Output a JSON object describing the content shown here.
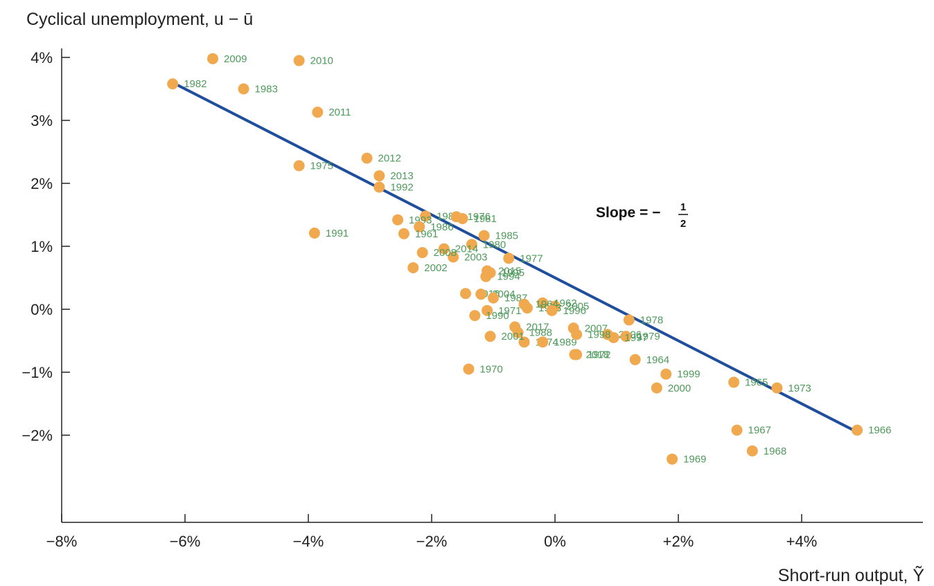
{
  "chart_data": {
    "type": "scatter",
    "ylabel": "Cyclical unemployment, u − ū",
    "xlabel": "Short-run output, Ỹ",
    "x_ticks": [
      "−8%",
      "−6%",
      "−4%",
      "−2%",
      "0%",
      "+2%",
      "+4%"
    ],
    "x_tick_values": [
      -8,
      -6,
      -4,
      -2,
      0,
      2,
      4
    ],
    "y_ticks": [
      "4%",
      "3%",
      "2%",
      "1%",
      "0%",
      "−1%",
      "−2%"
    ],
    "y_tick_values": [
      4,
      3,
      2,
      1,
      0,
      -1,
      -2
    ],
    "xlim": [
      -8,
      6
    ],
    "ylim": [
      -3.4,
      4.3
    ],
    "grid": false,
    "annotation": {
      "text": "Slope = −",
      "numerator": "1",
      "denominator": "2"
    },
    "fit_line": {
      "slope": -0.5,
      "x_range": [
        -6.2,
        4.9
      ],
      "color": "#1f4e9c"
    },
    "point_color": "#f0a94e",
    "label_color": "#4e9a5b",
    "points": [
      {
        "year": "2009",
        "x": -5.55,
        "y": 3.98
      },
      {
        "year": "2010",
        "x": -4.15,
        "y": 3.95
      },
      {
        "year": "1982",
        "x": -6.2,
        "y": 3.58
      },
      {
        "year": "1983",
        "x": -5.05,
        "y": 3.5
      },
      {
        "year": "2011",
        "x": -3.85,
        "y": 3.13
      },
      {
        "year": "2012",
        "x": -3.05,
        "y": 2.4
      },
      {
        "year": "1975",
        "x": -4.15,
        "y": 2.28
      },
      {
        "year": "2013",
        "x": -2.85,
        "y": 2.12
      },
      {
        "year": "1992",
        "x": -2.85,
        "y": 1.94
      },
      {
        "year": "1984",
        "x": -2.1,
        "y": 1.48
      },
      {
        "year": "1976",
        "x": -1.6,
        "y": 1.47
      },
      {
        "year": "1981",
        "x": -1.5,
        "y": 1.44
      },
      {
        "year": "1993",
        "x": -2.55,
        "y": 1.42
      },
      {
        "year": "1986",
        "x": -2.2,
        "y": 1.31
      },
      {
        "year": "1991",
        "x": -3.9,
        "y": 1.21
      },
      {
        "year": "1961",
        "x": -2.45,
        "y": 1.2
      },
      {
        "year": "1985",
        "x": -1.15,
        "y": 1.17
      },
      {
        "year": "1980",
        "x": -1.35,
        "y": 1.03
      },
      {
        "year": "2014",
        "x": -1.8,
        "y": 0.96
      },
      {
        "year": "2003",
        "x": -1.65,
        "y": 0.83
      },
      {
        "year": "1977",
        "x": -0.75,
        "y": 0.81
      },
      {
        "year": "2002",
        "x": -2.3,
        "y": 0.66
      },
      {
        "year": "2008",
        "x": -2.15,
        "y": 0.9
      },
      {
        "year": "2015",
        "x": -1.1,
        "y": 0.61
      },
      {
        "year": "1994",
        "x": -1.12,
        "y": 0.52
      },
      {
        "year": "1995",
        "x": -1.05,
        "y": 0.58
      },
      {
        "year": "2016",
        "x": -1.45,
        "y": 0.25
      },
      {
        "year": "2004",
        "x": -1.2,
        "y": 0.24
      },
      {
        "year": "1987",
        "x": -1.0,
        "y": 0.18
      },
      {
        "year": "1962",
        "x": -0.2,
        "y": 0.1
      },
      {
        "year": "2005",
        "x": 0.0,
        "y": 0.05
      },
      {
        "year": "1964",
        "x": -0.5,
        "y": 0.08
      },
      {
        "year": "1963",
        "x": -0.45,
        "y": 0.02
      },
      {
        "year": "1996",
        "x": -0.05,
        "y": -0.02
      },
      {
        "year": "1971",
        "x": -1.1,
        "y": -0.02
      },
      {
        "year": "1990",
        "x": -1.3,
        "y": -0.1
      },
      {
        "year": "2017",
        "x": -0.65,
        "y": -0.28
      },
      {
        "year": "1988",
        "x": -0.6,
        "y": -0.37
      },
      {
        "year": "2007",
        "x": 0.3,
        "y": -0.3
      },
      {
        "year": "2006",
        "x": 0.85,
        "y": -0.4
      },
      {
        "year": "1978",
        "x": 1.2,
        "y": -0.17
      },
      {
        "year": "1979",
        "x": 1.15,
        "y": -0.43
      },
      {
        "year": "1974",
        "x": -0.5,
        "y": -0.52
      },
      {
        "year": "2001",
        "x": -1.05,
        "y": -0.43
      },
      {
        "year": "1989",
        "x": -0.2,
        "y": -0.52
      },
      {
        "year": "1997",
        "x": 0.95,
        "y": -0.45
      },
      {
        "year": "1998",
        "x": 0.35,
        "y": -0.4
      },
      {
        "year": "1964",
        "x": 1.3,
        "y": -0.8
      },
      {
        "year": "1972",
        "x": 0.35,
        "y": -0.72
      },
      {
        "year": "2018",
        "x": 0.32,
        "y": -0.72
      },
      {
        "year": "1970",
        "x": -1.4,
        "y": -0.95
      },
      {
        "year": "1999",
        "x": 1.8,
        "y": -1.03
      },
      {
        "year": "2000",
        "x": 1.65,
        "y": -1.25
      },
      {
        "year": "1965",
        "x": 2.9,
        "y": -1.16
      },
      {
        "year": "1973",
        "x": 3.6,
        "y": -1.25
      },
      {
        "year": "1967",
        "x": 2.95,
        "y": -1.92
      },
      {
        "year": "1966",
        "x": 4.9,
        "y": -1.92
      },
      {
        "year": "1968",
        "x": 3.2,
        "y": -2.25
      },
      {
        "year": "1969",
        "x": 1.9,
        "y": -2.38
      }
    ]
  }
}
